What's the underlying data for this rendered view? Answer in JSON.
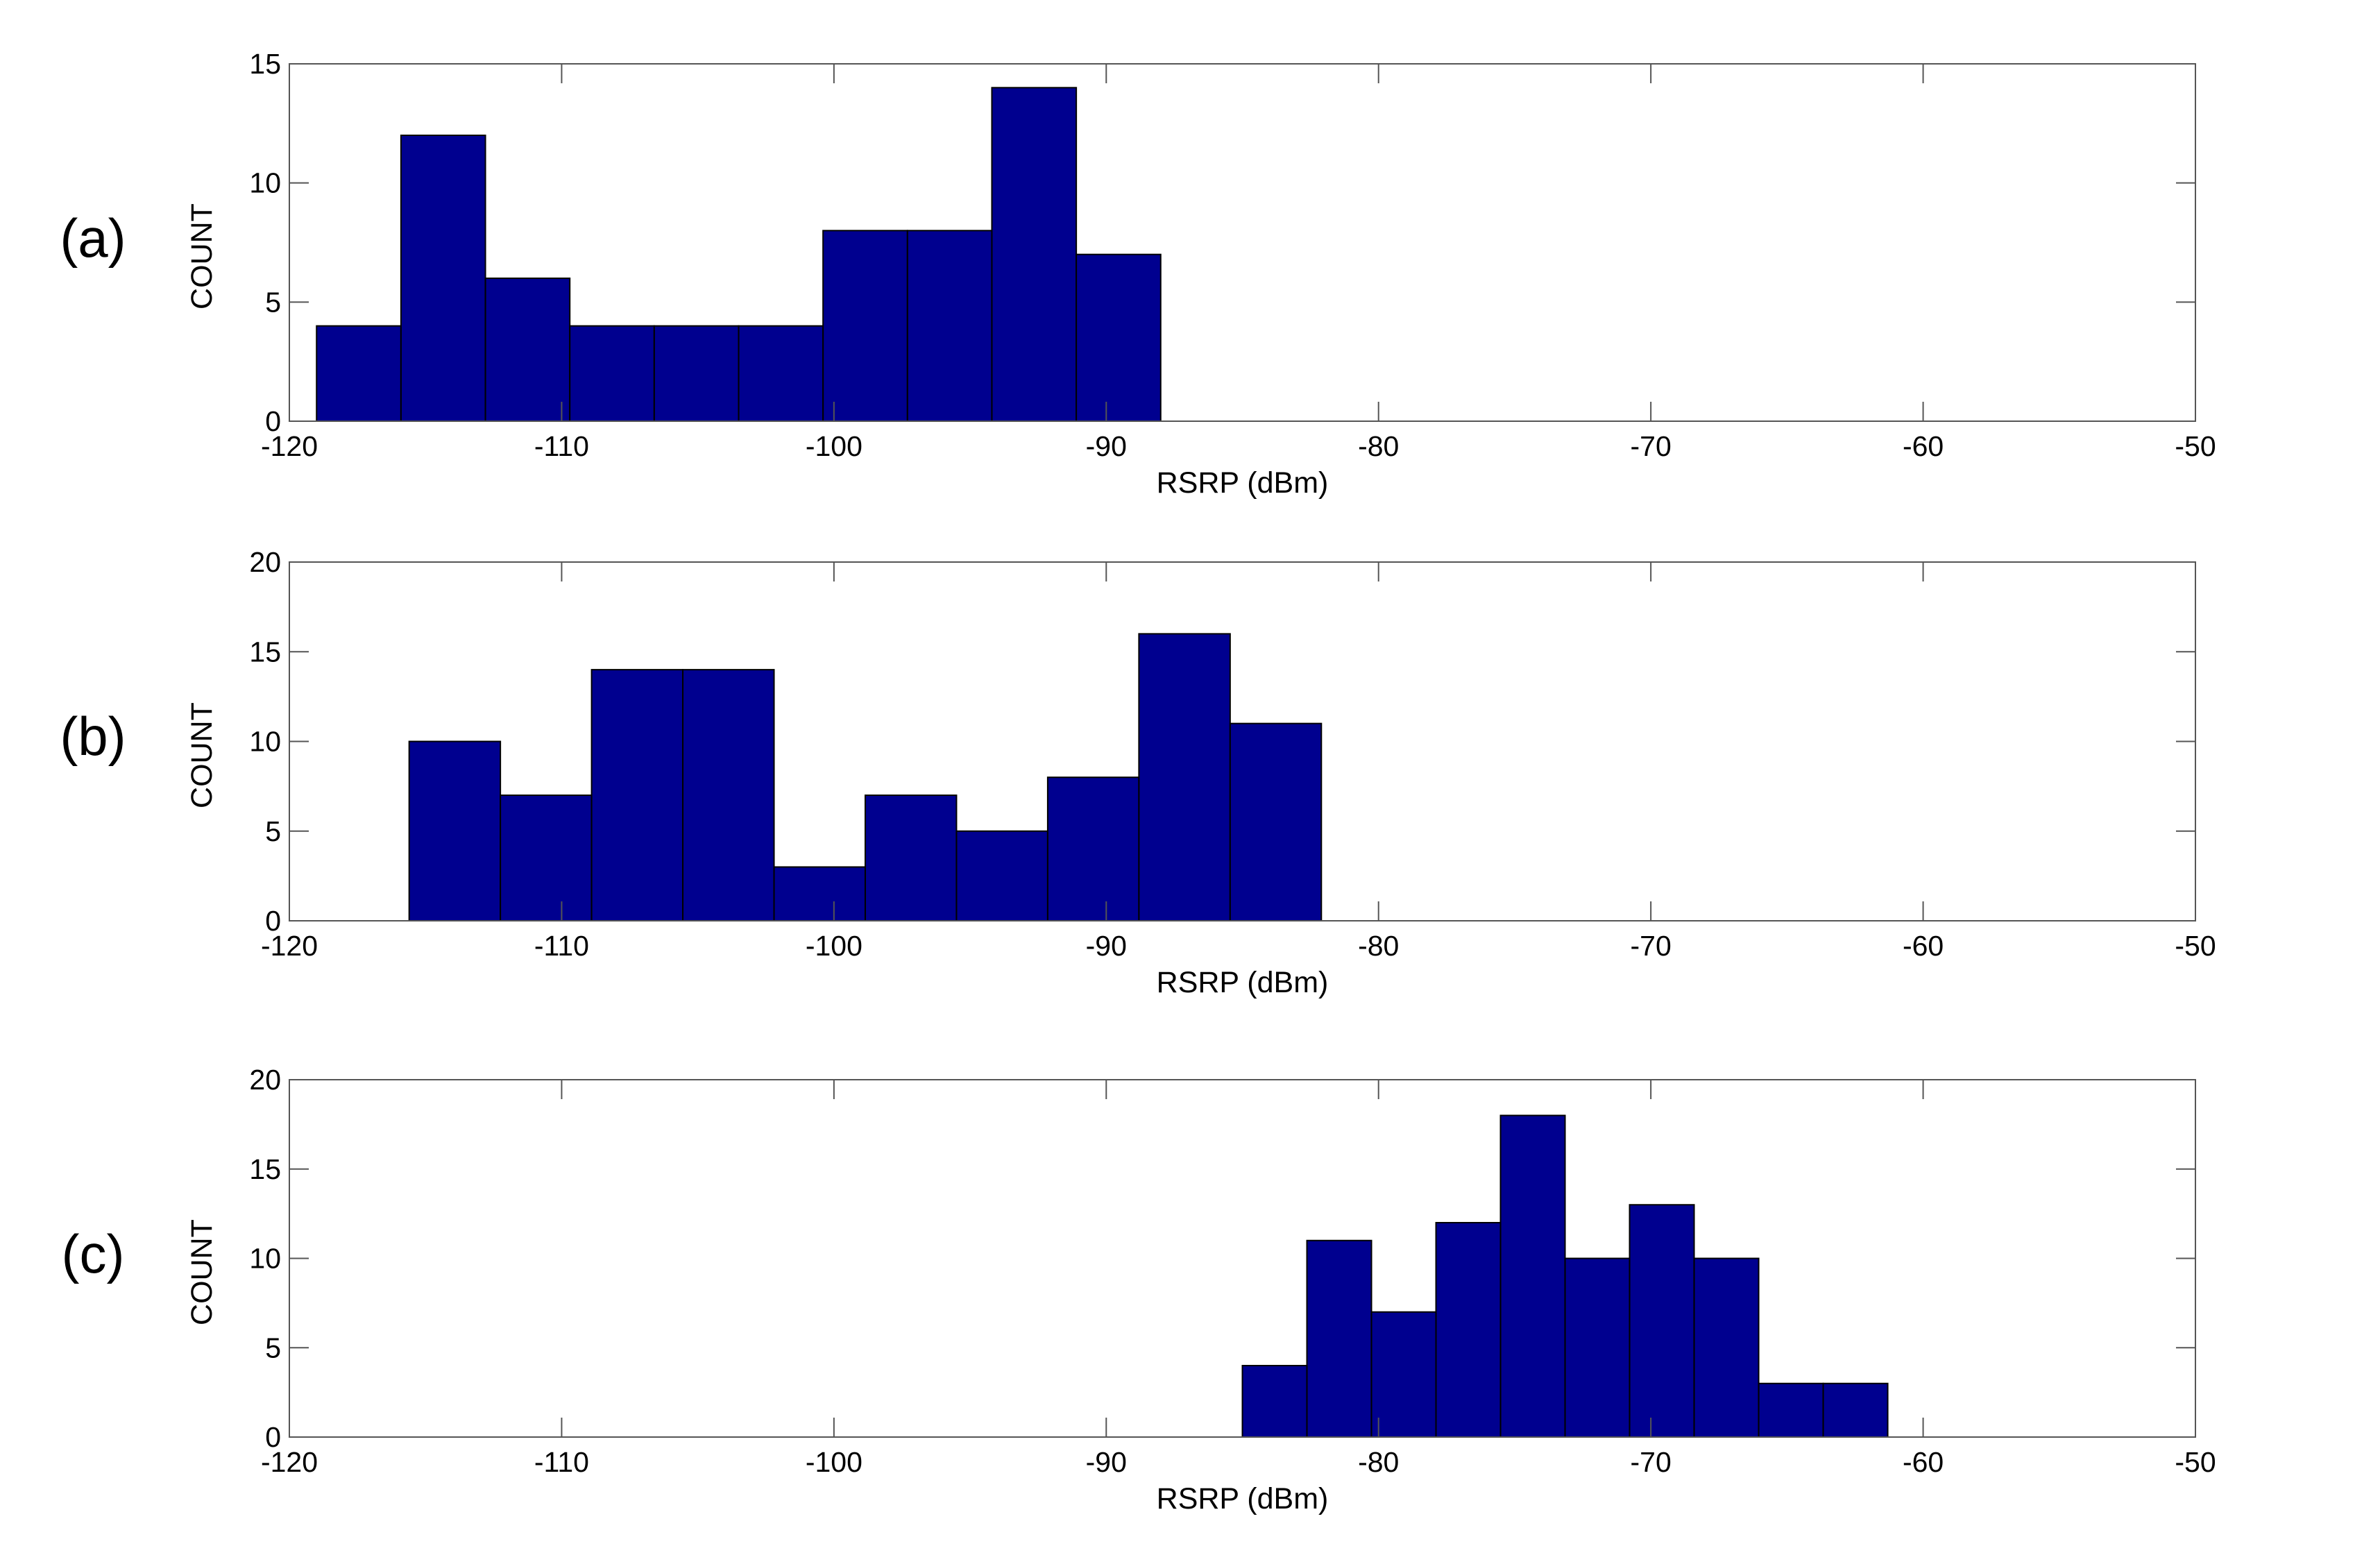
{
  "chart_data": [
    {
      "type": "bar",
      "panel_label": "(a)",
      "xlabel": "RSRP (dBm)",
      "ylabel": "COUNT",
      "xlim": [
        -120,
        -50
      ],
      "ylim": [
        0,
        15
      ],
      "xticks": [
        "-120",
        "-110",
        "-100",
        "-90",
        "-80",
        "-70",
        "-60",
        "-50"
      ],
      "yticks": [
        "0",
        "5",
        "10",
        "15"
      ],
      "bin_edges": [
        -119.0,
        -115.9,
        -112.8,
        -109.7,
        -106.6,
        -103.5,
        -100.4,
        -97.3,
        -94.2,
        -91.1,
        -88.0
      ],
      "values": [
        4,
        12,
        6,
        4,
        4,
        4,
        8,
        8,
        14,
        7
      ],
      "bar_color": "#00008F"
    },
    {
      "type": "bar",
      "panel_label": "(b)",
      "xlabel": "RSRP (dBm)",
      "ylabel": "COUNT",
      "xlim": [
        -120,
        -50
      ],
      "ylim": [
        0,
        20
      ],
      "xticks": [
        "-120",
        "-110",
        "-100",
        "-90",
        "-80",
        "-70",
        "-60",
        "-50"
      ],
      "yticks": [
        "0",
        "5",
        "10",
        "15",
        "20"
      ],
      "bin_edges": [
        -115.6,
        -112.25,
        -108.9,
        -105.55,
        -102.2,
        -98.85,
        -95.5,
        -92.15,
        -88.8,
        -85.45,
        -82.1
      ],
      "values": [
        10,
        7,
        14,
        14,
        3,
        7,
        5,
        8,
        16,
        11
      ],
      "bar_color": "#00008F"
    },
    {
      "type": "bar",
      "panel_label": "(c)",
      "xlabel": "RSRP (dBm)",
      "ylabel": "COUNT",
      "xlim": [
        -120,
        -50
      ],
      "ylim": [
        0,
        20
      ],
      "xticks": [
        "-120",
        "-110",
        "-100",
        "-90",
        "-80",
        "-70",
        "-60",
        "-50"
      ],
      "yticks": [
        "0",
        "5",
        "10",
        "15",
        "20"
      ],
      "bin_edges": [
        -85.0,
        -82.63,
        -80.26,
        -77.89,
        -75.52,
        -73.15,
        -70.78,
        -68.41,
        -66.04,
        -63.67,
        -61.3
      ],
      "values": [
        4,
        11,
        7,
        12,
        18,
        10,
        13,
        10,
        3,
        3
      ],
      "bar_color": "#00008F"
    }
  ]
}
